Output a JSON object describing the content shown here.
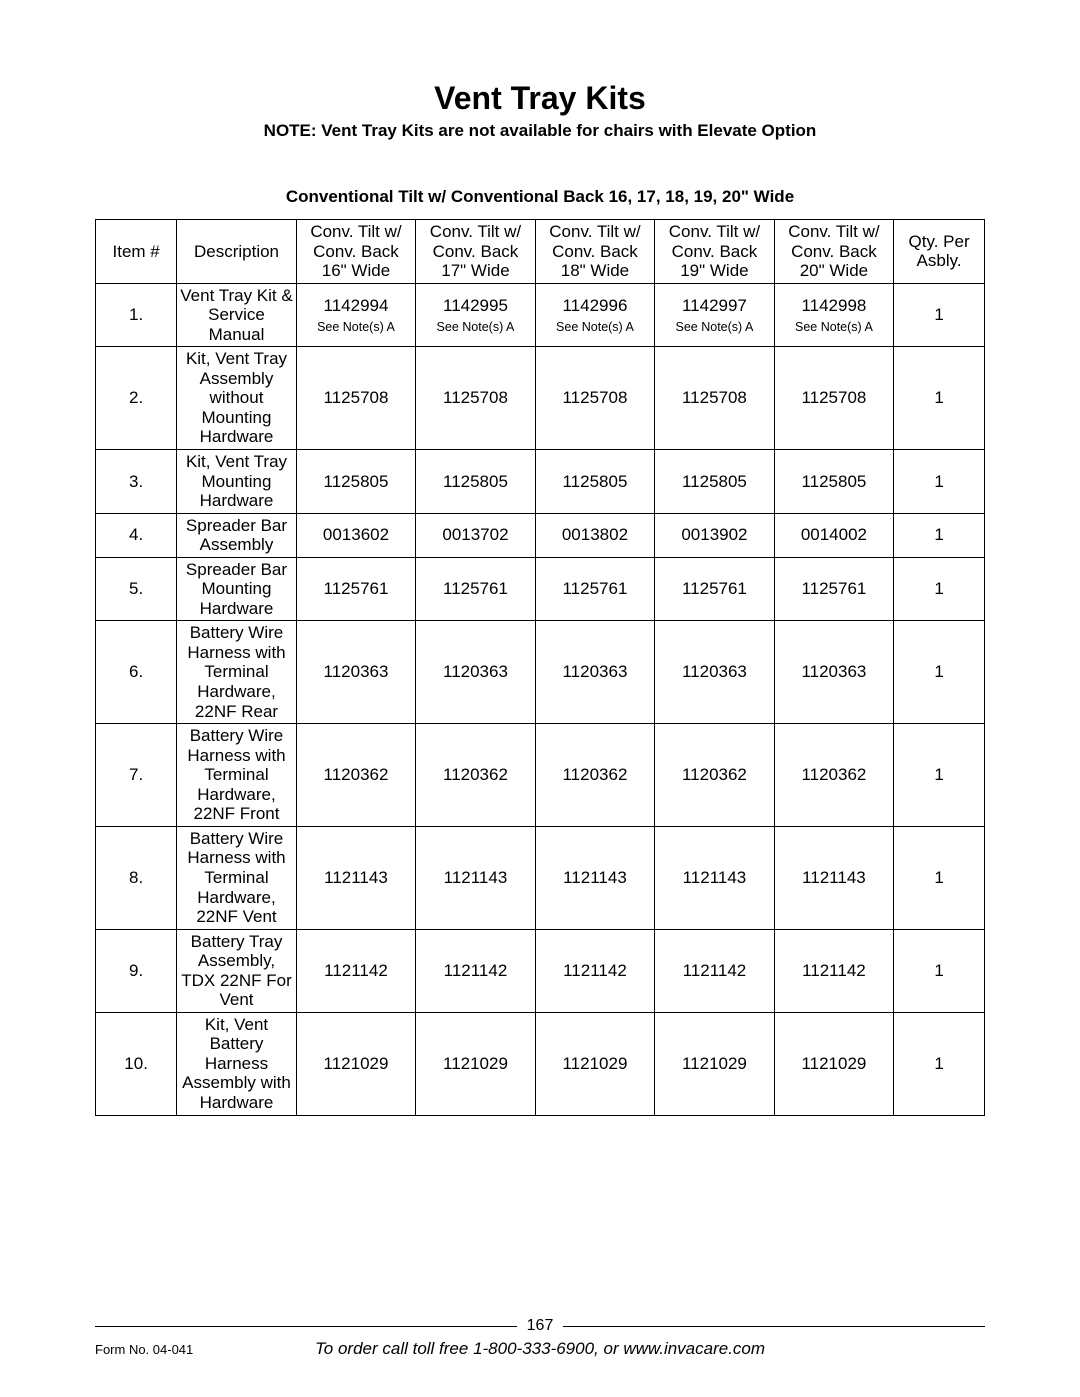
{
  "title": "Vent Tray Kits",
  "note": "NOTE: Vent Tray Kits are not available for chairs with Elevate Option",
  "subheading": "Conventional Tilt w/ Conventional Back 16, 17, 18, 19, 20\" Wide",
  "columns": {
    "item": "Item #",
    "desc": "Description",
    "w16": "Conv. Tilt w/ Conv. Back 16\" Wide",
    "w17": "Conv. Tilt w/ Conv. Back 17\" Wide",
    "w18": "Conv. Tilt w/ Conv. Back 18\" Wide",
    "w19": "Conv. Tilt w/ Conv. Back 19\" Wide",
    "w20": "Conv. Tilt w/ Conv. Back 20\" Wide",
    "qty": "Qty. Per Asbly."
  },
  "see_note": "See Note(s) A",
  "rows": [
    {
      "item": "1.",
      "desc": "Vent Tray Kit & Service Manual",
      "w16": "1142994",
      "w17": "1142995",
      "w18": "1142996",
      "w19": "1142997",
      "w20": "1142998",
      "qty": "1",
      "has_note": true
    },
    {
      "item": "2.",
      "desc": "Kit, Vent Tray Assembly without Mounting Hardware",
      "w16": "1125708",
      "w17": "1125708",
      "w18": "1125708",
      "w19": "1125708",
      "w20": "1125708",
      "qty": "1"
    },
    {
      "item": "3.",
      "desc": "Kit, Vent Tray Mounting Hardware",
      "w16": "1125805",
      "w17": "1125805",
      "w18": "1125805",
      "w19": "1125805",
      "w20": "1125805",
      "qty": "1"
    },
    {
      "item": "4.",
      "desc": "Spreader Bar Assembly",
      "w16": "0013602",
      "w17": "0013702",
      "w18": "0013802",
      "w19": "0013902",
      "w20": "0014002",
      "qty": "1"
    },
    {
      "item": "5.",
      "desc": "Spreader Bar Mounting Hardware",
      "w16": "1125761",
      "w17": "1125761",
      "w18": "1125761",
      "w19": "1125761",
      "w20": "1125761",
      "qty": "1"
    },
    {
      "item": "6.",
      "desc": "Battery Wire Harness with Terminal Hardware, 22NF Rear",
      "w16": "1120363",
      "w17": "1120363",
      "w18": "1120363",
      "w19": "1120363",
      "w20": "1120363",
      "qty": "1"
    },
    {
      "item": "7.",
      "desc": "Battery Wire Harness with Terminal Hardware, 22NF Front",
      "w16": "1120362",
      "w17": "1120362",
      "w18": "1120362",
      "w19": "1120362",
      "w20": "1120362",
      "qty": "1"
    },
    {
      "item": "8.",
      "desc": "Battery Wire Harness with Terminal Hardware, 22NF Vent",
      "w16": "1121143",
      "w17": "1121143",
      "w18": "1121143",
      "w19": "1121143",
      "w20": "1121143",
      "qty": "1"
    },
    {
      "item": "9.",
      "desc": "Battery Tray Assembly, TDX 22NF For Vent",
      "w16": "1121142",
      "w17": "1121142",
      "w18": "1121142",
      "w19": "1121142",
      "w20": "1121142",
      "qty": "1"
    },
    {
      "item": "10.",
      "desc": "Kit, Vent Battery Harness Assembly with Hardware",
      "w16": "1121029",
      "w17": "1121029",
      "w18": "1121029",
      "w19": "1121029",
      "w20": "1121029",
      "qty": "1"
    }
  ],
  "footer": {
    "page_number": "167",
    "form_no": "Form No. 04-041",
    "order_info": "To order call toll free 1-800-333-6900, or www.invacare.com"
  },
  "style": {
    "background_color": "#ffffff",
    "text_color": "#000000",
    "border_color": "#000000",
    "title_fontsize": 32,
    "body_fontsize": 17,
    "note_fontsize": 12.5,
    "footer_form_fontsize": 13
  }
}
